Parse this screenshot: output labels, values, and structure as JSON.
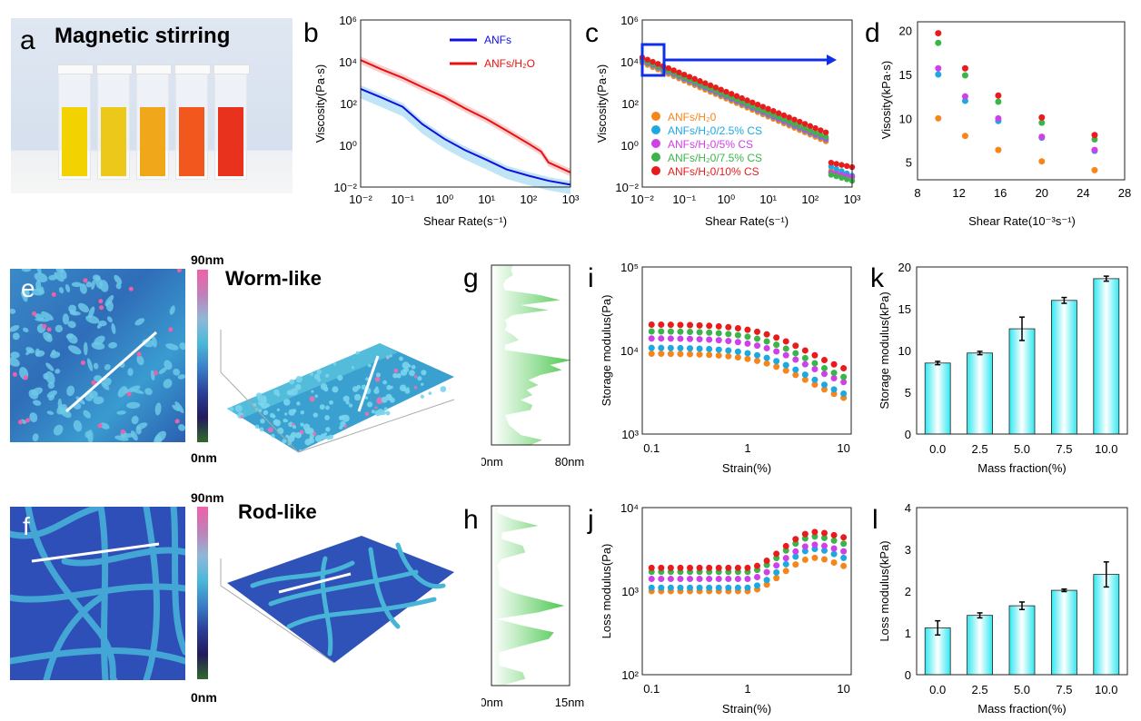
{
  "figure": {
    "panel_labels": {
      "a": "a",
      "b": "b",
      "c": "c",
      "d": "d",
      "e": "e",
      "f": "f",
      "g": "g",
      "h": "h",
      "i": "i",
      "j": "j",
      "k": "k",
      "l": "l"
    },
    "photo": {
      "title": "Magnetic stirring",
      "vial_colors": [
        "#f2d200",
        "#ecc81a",
        "#f0a81a",
        "#f2581e",
        "#e8321e"
      ]
    },
    "afm": {
      "colorbar_max": "90nm",
      "colorbar_min": "0nm",
      "worm_title": "Worm-like",
      "rod_title": "Rod-like",
      "colorbar_colors": [
        "#2f6b2a",
        "#241a5c",
        "#2a3f9a",
        "#3a7ec8",
        "#4ab8d8",
        "#8fb8d8",
        "#c080b8",
        "#f060a8"
      ]
    },
    "series_colors": {
      "ANFs/H2O": "#f7861a",
      "ANFs/H2O/2.5% CS": "#1ea8e0",
      "ANFs/H2O/5% CS": "#d040e8",
      "ANFs/H2O/7.5% CS": "#3cb44a",
      "ANFs/H2O/10% CS": "#e81c1c"
    }
  },
  "chart_data": [
    {
      "id": "b",
      "type": "line",
      "title": "",
      "xlabel": "Shear Rate(s⁻¹)",
      "ylabel": "Viscosity(Pa·s)",
      "xscale": "log",
      "yscale": "log",
      "xlim": [
        0.01,
        1000
      ],
      "ylim": [
        0.01,
        1000000
      ],
      "xticks": [
        "10⁻²",
        "10⁻¹",
        "10⁰",
        "10¹",
        "10²",
        "10³"
      ],
      "yticks": [
        "10⁻²",
        "10⁰",
        "10²",
        "10⁴",
        "10⁶"
      ],
      "legend": "top-right",
      "series": [
        {
          "name": "ANFs",
          "color": "#1010e0",
          "band": "#8cd0f0",
          "x": [
            0.01,
            0.03,
            0.1,
            0.3,
            1,
            3,
            10,
            30,
            100,
            300,
            1000
          ],
          "y": [
            500,
            200,
            70,
            10,
            2,
            0.6,
            0.2,
            0.07,
            0.035,
            0.02,
            0.013
          ]
        },
        {
          "name": "ANFs/H₂O",
          "color": "#e81010",
          "band": "#f4a8a8",
          "x": [
            0.01,
            0.03,
            0.1,
            0.3,
            1,
            3,
            10,
            30,
            100,
            200,
            300,
            1000
          ],
          "y": [
            12000,
            4500,
            1700,
            600,
            200,
            60,
            18,
            5,
            1.2,
            0.5,
            0.15,
            0.05
          ]
        }
      ]
    },
    {
      "id": "c",
      "type": "scatter",
      "xlabel": "Shear Rate(s⁻¹)",
      "ylabel": "Viscosity(Pa·s)",
      "xscale": "log",
      "yscale": "log",
      "xlim": [
        0.01,
        1000
      ],
      "ylim": [
        0.01,
        1000000
      ],
      "xticks": [
        "10⁻²",
        "10⁻¹",
        "10⁰",
        "10¹",
        "10²",
        "10³"
      ],
      "yticks": [
        "10⁻²",
        "10⁰",
        "10²",
        "10⁴",
        "10⁶"
      ],
      "legend": "bottom-left",
      "series": [
        {
          "name": "ANFs/H₂0",
          "color": "#f7861a",
          "y0": 9000,
          "slope": -0.86,
          "tail": [
            0.06,
            0.03
          ]
        },
        {
          "name": "ANFs/H₂0/2.5% CS",
          "color": "#1ea8e0",
          "y0": 11000,
          "slope": -0.86,
          "tail": [
            0.1,
            0.035
          ]
        },
        {
          "name": "ANFs/H₂0/5% CS",
          "color": "#d040e8",
          "y0": 12000,
          "slope": -0.86,
          "tail": [
            0.05,
            0.03
          ]
        },
        {
          "name": "ANFs/H₂0/7.5% CS",
          "color": "#3cb44a",
          "y0": 13000,
          "slope": -0.85,
          "tail": [
            0.04,
            0.02
          ]
        },
        {
          "name": "ANFs/H₂0/10% CS",
          "color": "#e81c1c",
          "y0": 16000,
          "slope": -0.82,
          "tail": [
            0.15,
            0.09
          ]
        }
      ],
      "annotation": "zoom box at low shear rate with arrow to panel d"
    },
    {
      "id": "d",
      "type": "scatter",
      "xlabel": "Shear Rate(10⁻³s⁻¹)",
      "ylabel": "Visosity(kPa·s)",
      "xlim": [
        8,
        28
      ],
      "ylim": [
        3,
        21
      ],
      "xticks": [
        "8",
        "12",
        "16",
        "20",
        "24",
        "28"
      ],
      "yticks": [
        "5",
        "10",
        "15",
        "20"
      ],
      "x": [
        10,
        12.6,
        15.8,
        20,
        25.1
      ],
      "series": [
        {
          "name": "ANFs/H₂0",
          "color": "#f7861a",
          "values": [
            10,
            8,
            6.4,
            5.1,
            4.1
          ]
        },
        {
          "name": "ANFs/H₂0/2.5% CS",
          "color": "#1ea8e0",
          "values": [
            15,
            12,
            9.7,
            7.8,
            6.3
          ]
        },
        {
          "name": "ANFs/H₂0/5% CS",
          "color": "#d040e8",
          "values": [
            15.7,
            12.5,
            10,
            7.9,
            6.4
          ]
        },
        {
          "name": "ANFs/H₂0/7.5% CS",
          "color": "#3cb44a",
          "values": [
            18.6,
            14.9,
            11.9,
            9.5,
            7.6
          ]
        },
        {
          "name": "ANFs/H₂0/10% CS",
          "color": "#e81c1c",
          "values": [
            19.7,
            15.7,
            12.6,
            10.1,
            8.1
          ]
        }
      ]
    },
    {
      "id": "g",
      "type": "area",
      "xlabel_min": "0nm",
      "xlabel_max": "80nm",
      "profile": [
        22,
        20,
        22,
        14,
        12,
        14,
        50,
        70,
        30,
        58,
        22,
        14,
        16,
        14,
        22,
        28,
        14,
        14,
        50,
        82,
        60,
        72,
        50,
        38,
        48,
        36,
        42,
        30,
        42,
        40,
        14,
        16,
        18,
        24,
        30,
        52,
        40
      ]
    },
    {
      "id": "h",
      "type": "area",
      "xlabel_min": "0nm",
      "xlabel_max": "15nm",
      "profile": [
        1.5,
        1,
        4,
        9,
        2,
        2,
        6,
        6.5,
        2,
        1,
        1.5,
        1.5,
        1.5,
        4,
        9,
        14,
        9,
        1,
        6,
        12,
        11,
        6,
        1.5,
        1.5,
        1.5,
        6,
        6.5,
        2
      ]
    },
    {
      "id": "i",
      "type": "scatter",
      "xlabel": "Strain(%)",
      "ylabel": "Storage modulus(Pa)",
      "xscale": "log",
      "yscale": "log",
      "xlim": [
        0.08,
        12
      ],
      "ylim": [
        1000,
        100000
      ],
      "xticks": [
        "0.1",
        "1",
        "10"
      ],
      "yticks": [
        "10³",
        "10⁴",
        "10⁵"
      ],
      "series": [
        {
          "name": "ANFs/H₂0",
          "color": "#f7861a",
          "plateau": 9200,
          "end": 1800
        },
        {
          "name": "ANFs/H₂0/2.5% CS",
          "color": "#1ea8e0",
          "plateau": 10800,
          "end": 1950
        },
        {
          "name": "ANFs/H₂0/5% CS",
          "color": "#d040e8",
          "plateau": 14000,
          "end": 2800
        },
        {
          "name": "ANFs/H₂0/7.5% CS",
          "color": "#3cb44a",
          "plateau": 17000,
          "end": 3100
        },
        {
          "name": "ANFs/H₂0/10% CS",
          "color": "#e81c1c",
          "plateau": 20500,
          "end": 4100
        }
      ]
    },
    {
      "id": "j",
      "type": "scatter",
      "xlabel": "Strain(%)",
      "ylabel": "Loss modulus(Pa)",
      "xscale": "log",
      "yscale": "log",
      "xlim": [
        0.08,
        12
      ],
      "ylim": [
        100,
        10000
      ],
      "xticks": [
        "0.1",
        "1",
        "10"
      ],
      "yticks": [
        "10²",
        "10³",
        "10⁴"
      ],
      "series": [
        {
          "name": "ANFs/H₂0",
          "color": "#f7861a",
          "plateau": 1000,
          "peak": 2500,
          "end": 2000
        },
        {
          "name": "ANFs/H₂0/2.5% CS",
          "color": "#1ea8e0",
          "plateau": 1100,
          "peak": 3200,
          "end": 2500
        },
        {
          "name": "ANFs/H₂0/5% CS",
          "color": "#d040e8",
          "plateau": 1400,
          "peak": 3600,
          "end": 3000
        },
        {
          "name": "ANFs/H₂0/7.5% CS",
          "color": "#3cb44a",
          "plateau": 1700,
          "peak": 4500,
          "end": 3700
        },
        {
          "name": "ANFs/H₂0/10% CS",
          "color": "#e81c1c",
          "plateau": 1900,
          "peak": 5100,
          "end": 4400
        }
      ]
    },
    {
      "id": "k",
      "type": "bar",
      "xlabel": "Mass fraction(%)",
      "ylabel": "Storage modulus(kPa)",
      "categories": [
        "0.0",
        "2.5",
        "5.0",
        "7.5",
        "10.0"
      ],
      "values": [
        8.5,
        9.7,
        12.6,
        16.0,
        18.6
      ],
      "errors": [
        0.2,
        0.2,
        1.4,
        0.35,
        0.3
      ],
      "ylim": [
        0,
        20
      ],
      "yticks": [
        "0",
        "5",
        "10",
        "15",
        "20"
      ]
    },
    {
      "id": "l",
      "type": "bar",
      "xlabel": "Mass fraction(%)",
      "ylabel": "Loss modulus(kPa)",
      "categories": [
        "0.0",
        "2.5",
        "5.0",
        "7.5",
        "10.0"
      ],
      "values": [
        1.12,
        1.42,
        1.65,
        2.02,
        2.4
      ],
      "errors": [
        0.17,
        0.06,
        0.09,
        0.03,
        0.3
      ],
      "ylim": [
        0,
        4
      ],
      "yticks": [
        "0",
        "1",
        "2",
        "3",
        "4"
      ]
    }
  ]
}
